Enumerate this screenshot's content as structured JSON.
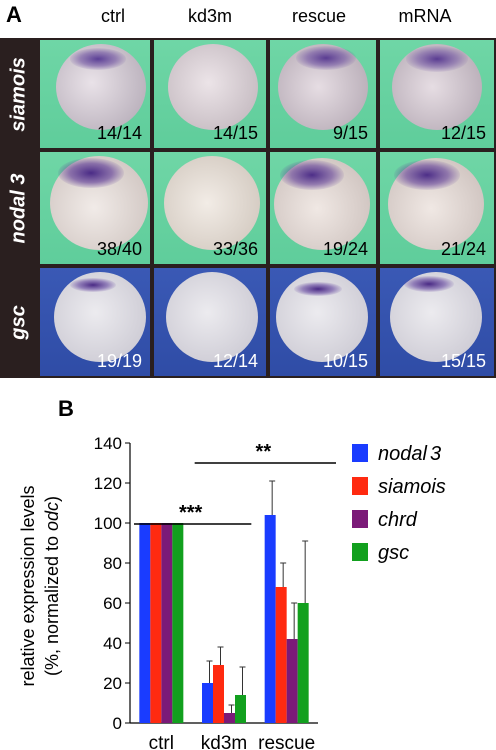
{
  "panel_a": {
    "letter": "A",
    "columns": [
      "ctrl",
      "kd3m",
      "rescue",
      "mRNA"
    ],
    "rows": [
      {
        "label": "siamois",
        "counts": [
          "14/14",
          "14/15",
          "9/15",
          "12/15"
        ]
      },
      {
        "label": "nodal 3",
        "counts": [
          "38/40",
          "33/36",
          "19/24",
          "21/24"
        ]
      },
      {
        "label": "gsc",
        "counts": [
          "19/19",
          "12/14",
          "10/15",
          "15/15"
        ]
      }
    ]
  },
  "panel_b": {
    "letter": "B",
    "significance": [
      "***",
      "**"
    ]
  },
  "chart_data": {
    "type": "bar",
    "categories": [
      "ctrl",
      "kd3m",
      "rescue"
    ],
    "ylabel_line1": "relative expression levels",
    "ylabel_line2": "(%, normalized to odc)",
    "ylim": [
      0,
      140
    ],
    "yticks": [
      0,
      20,
      40,
      60,
      80,
      100,
      120,
      140
    ],
    "series": [
      {
        "name": "nodal3",
        "color": "#1a3cff",
        "values": [
          100,
          20,
          104
        ],
        "errors": [
          0,
          11,
          17
        ]
      },
      {
        "name": "siamois",
        "color": "#ff2a10",
        "values": [
          100,
          29,
          68
        ],
        "errors": [
          0,
          9,
          12
        ]
      },
      {
        "name": "chrd",
        "color": "#7b1a78",
        "values": [
          100,
          5,
          42
        ],
        "errors": [
          0,
          4,
          18
        ]
      },
      {
        "name": "gsc",
        "color": "#12a01e",
        "values": [
          100,
          14,
          60
        ],
        "errors": [
          0,
          14,
          31
        ]
      }
    ],
    "legend_position": "right",
    "grid": false
  }
}
